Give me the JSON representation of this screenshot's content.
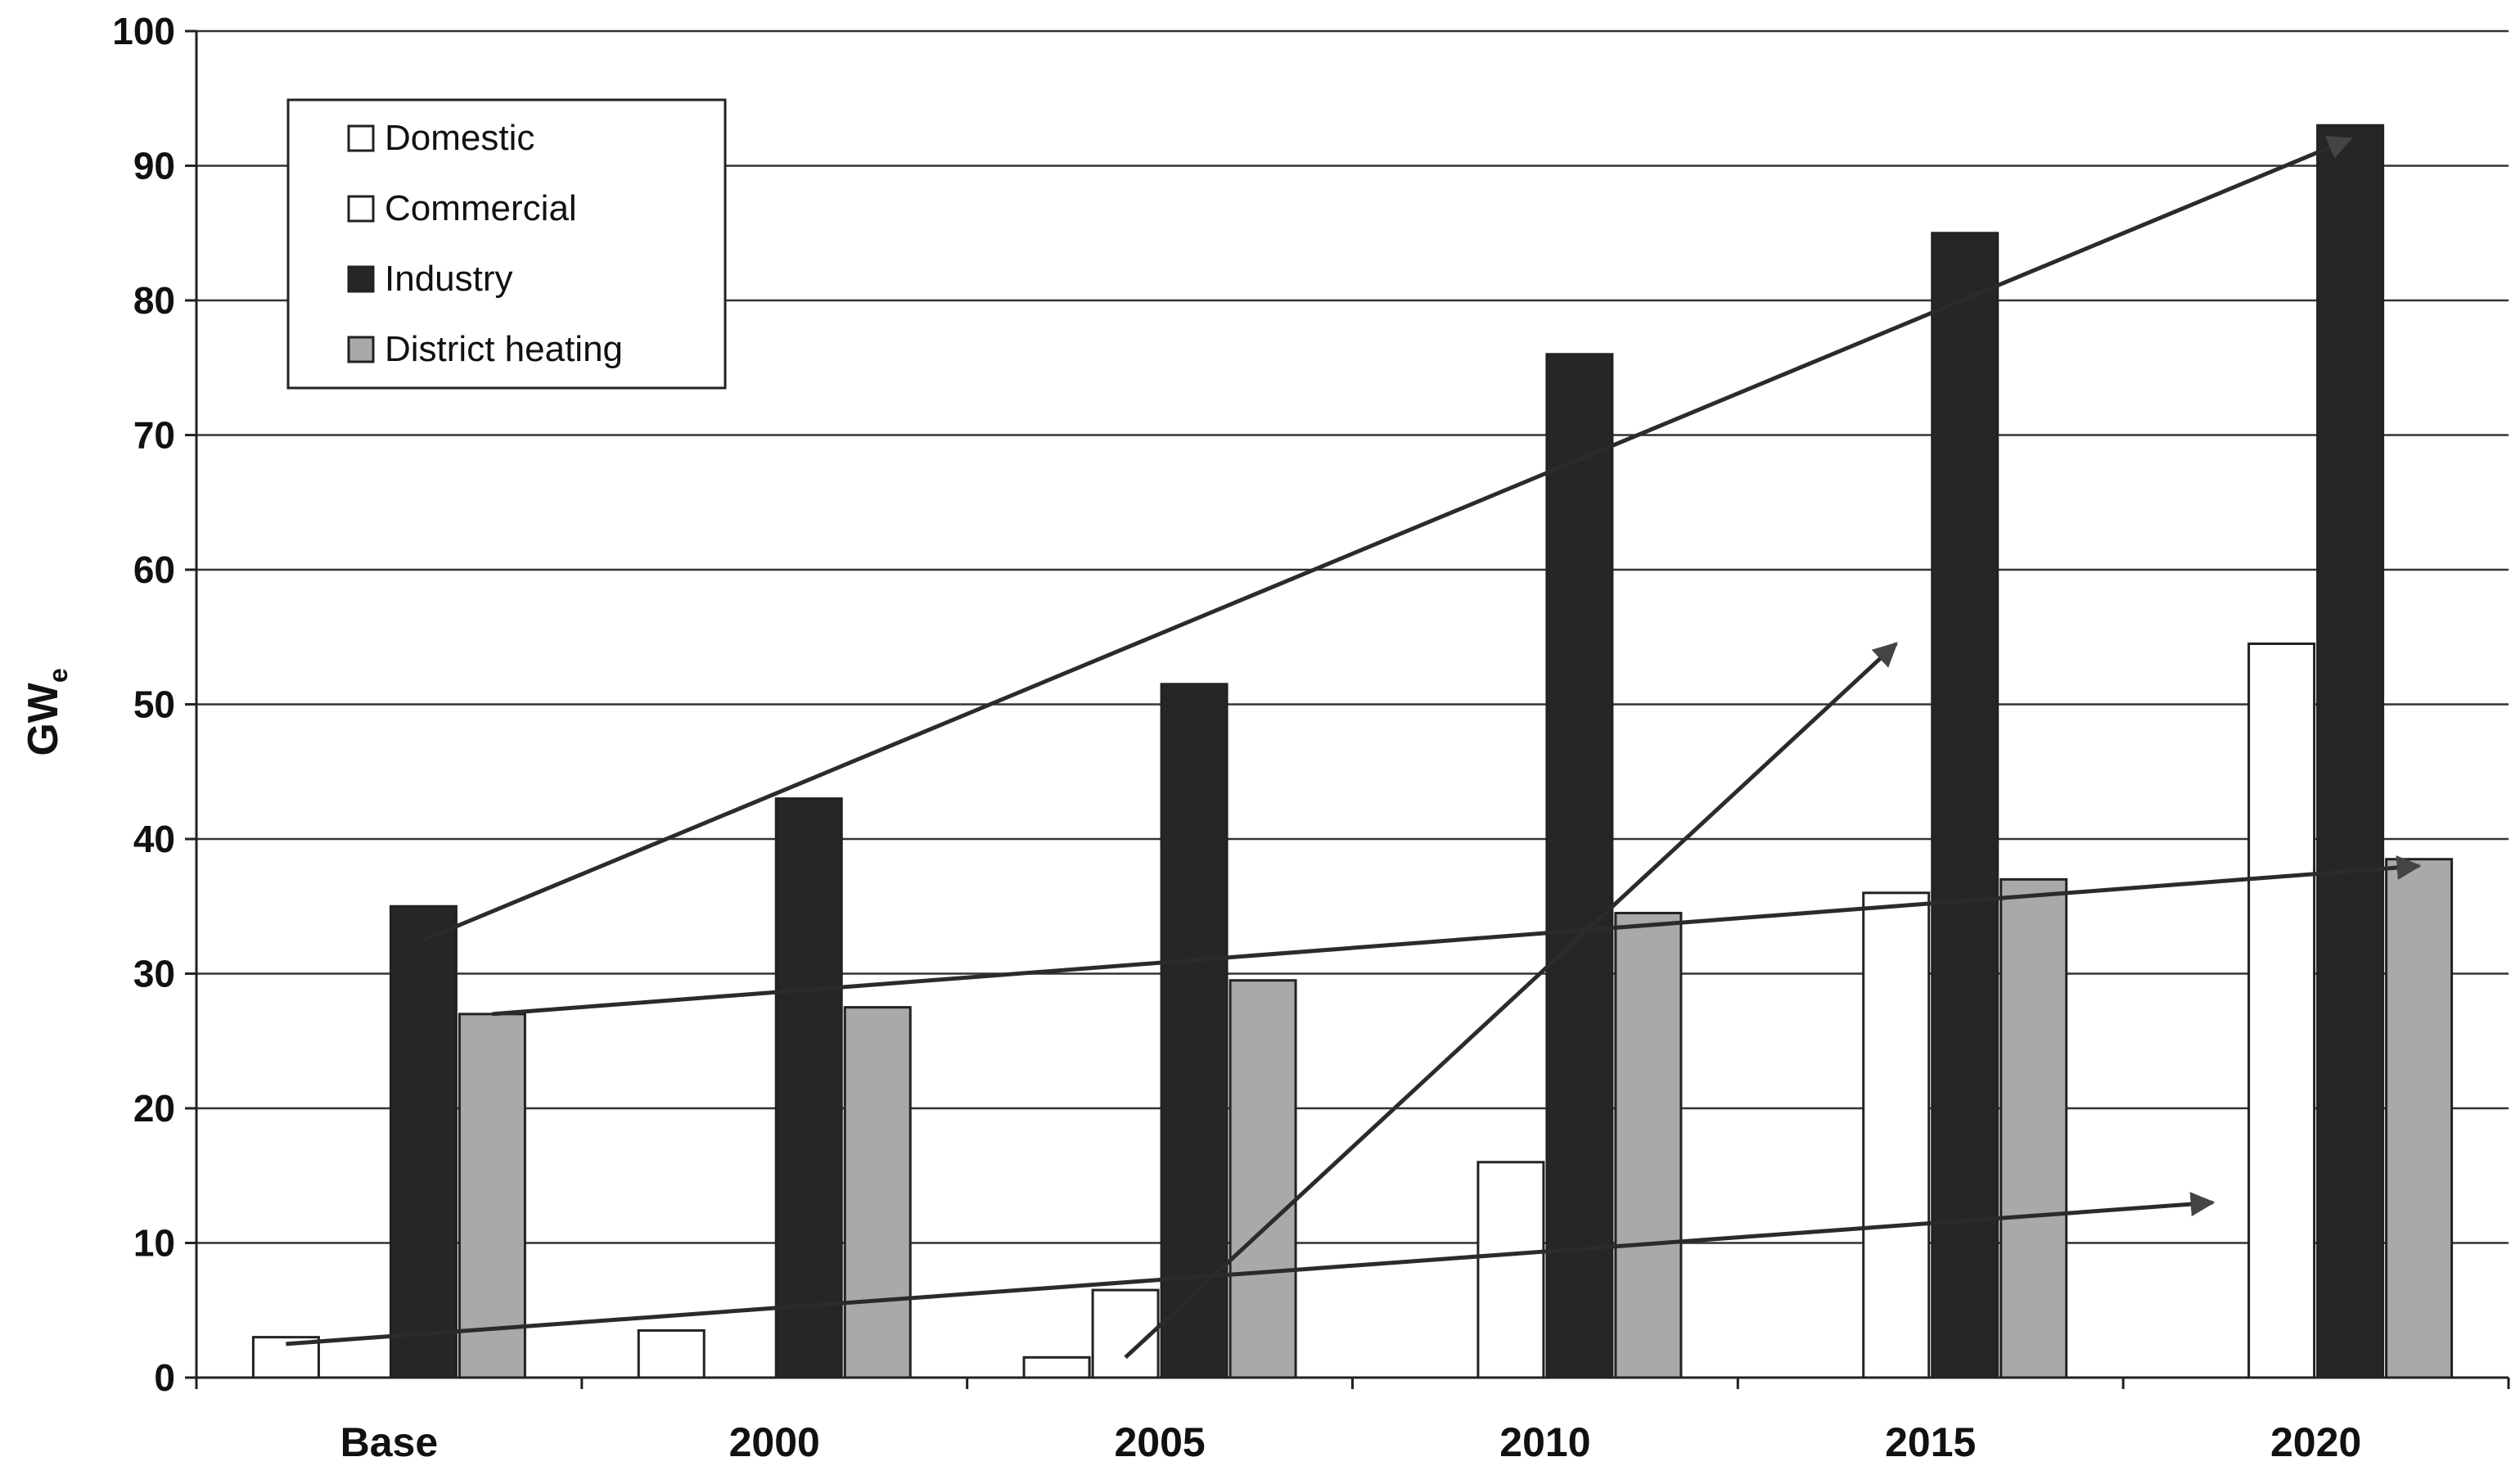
{
  "chart_data": {
    "type": "bar",
    "title": "",
    "xlabel": "",
    "ylabel": "GW",
    "ylabel_subscript": "e",
    "ylim": [
      0,
      100
    ],
    "yticks": [
      0,
      10,
      20,
      30,
      40,
      50,
      60,
      70,
      80,
      90,
      100
    ],
    "grid": true,
    "legend_position": "top-left",
    "categories": [
      "Base",
      "2000",
      "2005",
      "2010",
      "2015",
      "2020"
    ],
    "series": [
      {
        "name": "Domestic",
        "color": "#ffffff",
        "values": [
          3,
          3.5,
          1.5,
          0,
          0,
          0
        ]
      },
      {
        "name": "Commercial",
        "color": "#ffffff",
        "values": [
          0,
          0,
          6.5,
          16,
          36,
          54.5
        ]
      },
      {
        "name": "Industry",
        "color": "#262626",
        "values": [
          35,
          43,
          51.5,
          76,
          85,
          93
        ]
      },
      {
        "name": "District heating",
        "color": "#a9a9a9",
        "values": [
          27,
          27.5,
          29.5,
          34.5,
          37,
          38.5
        ]
      }
    ],
    "trend_arrows": [
      {
        "series": "Industry",
        "from": {
          "category": "Base",
          "value": 32.5
        },
        "to": {
          "category": "2020",
          "value": 92
        }
      },
      {
        "series": "District heating",
        "from": {
          "category": "Base",
          "value": 27
        },
        "to": {
          "category": "2020",
          "value": 38
        }
      },
      {
        "series": "Commercial",
        "from": {
          "category": "2005",
          "value": 1.5
        },
        "to": {
          "category": "2015",
          "value": 54.5
        }
      },
      {
        "series": "Domestic",
        "from": {
          "category": "Base",
          "value": 2.5
        },
        "to": {
          "category": "2020",
          "value": 13
        }
      }
    ]
  }
}
